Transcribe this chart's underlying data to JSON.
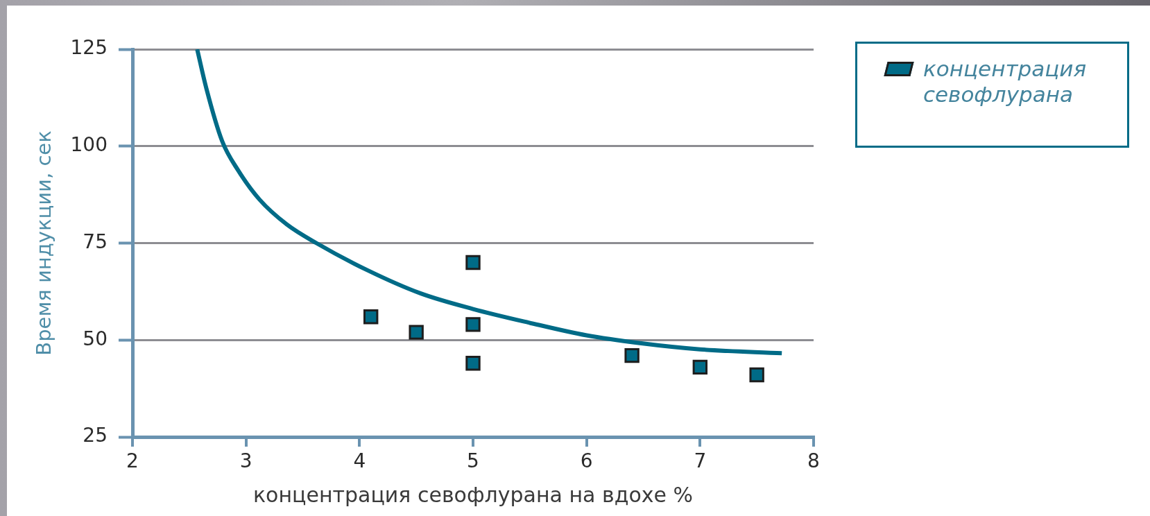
{
  "chart_data": {
    "type": "scatter",
    "xlabel": "концентрация севофлурана на вдохе %",
    "ylabel": "Время индукции, сек",
    "xlim": [
      2,
      8
    ],
    "ylim": [
      25,
      125
    ],
    "xticks": [
      2,
      3,
      4,
      5,
      6,
      7,
      8
    ],
    "yticks": [
      25,
      50,
      75,
      100,
      125
    ],
    "grid": "y",
    "legend": "top right",
    "marker": "square",
    "series": [
      {
        "name": "концентрация севофлурана",
        "color": "#006b87",
        "x": [
          4.1,
          4.5,
          5,
          5,
          5,
          6.4,
          7,
          7.5
        ],
        "values": [
          56,
          52,
          70,
          54,
          44,
          46,
          43,
          41
        ]
      },
      {
        "type": "line",
        "marker": "none",
        "color": "#006b87",
        "x": [
          2.57,
          2.65,
          2.79,
          2.93,
          3.12,
          3.36,
          3.62,
          4.07,
          4.54,
          5.0,
          5.49,
          6.0,
          6.47,
          7.0,
          7.72
        ],
        "values": [
          125,
          115,
          101.3,
          93.8,
          86.2,
          79.8,
          75,
          68,
          62,
          58,
          54.5,
          51.2,
          49.2,
          47.6,
          46.6
        ]
      }
    ]
  }
}
